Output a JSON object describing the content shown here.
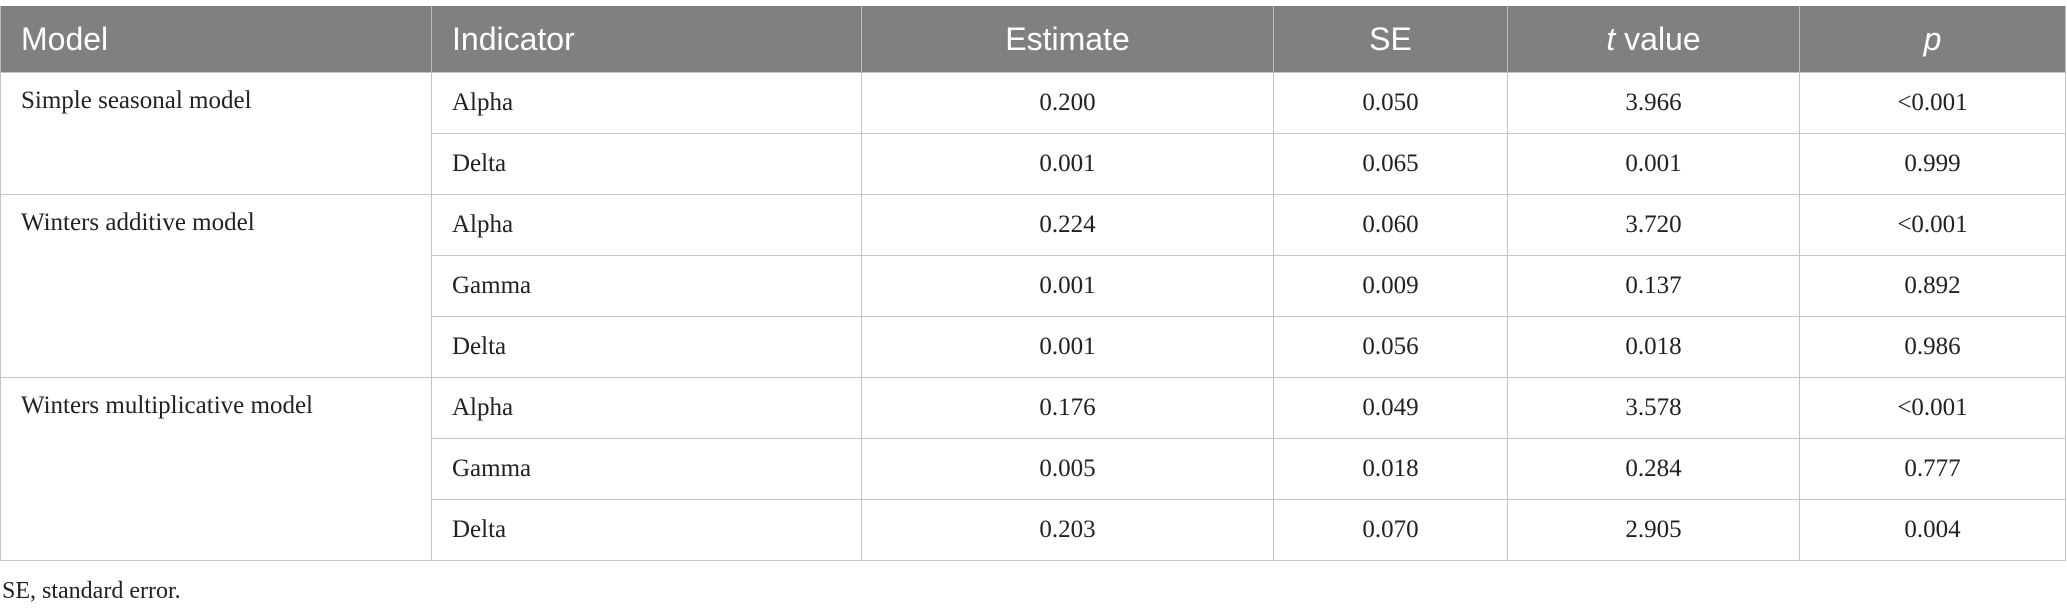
{
  "table": {
    "header": [
      "Model",
      "Indicator",
      "Estimate",
      "SE",
      {
        "var": "t",
        "text": "value"
      },
      {
        "var": "p"
      }
    ],
    "groups": [
      {
        "model": "Simple seasonal model",
        "rows": [
          [
            "Alpha",
            "0.200",
            "0.050",
            "3.966",
            "<0.001"
          ],
          [
            "Delta",
            "0.001",
            "0.065",
            "0.001",
            "0.999"
          ]
        ]
      },
      {
        "model": "Winters additive model",
        "rows": [
          [
            "Alpha",
            "0.224",
            "0.060",
            "3.720",
            "<0.001"
          ],
          [
            "Gamma",
            "0.001",
            "0.009",
            "0.137",
            "0.892"
          ],
          [
            "Delta",
            "0.001",
            "0.056",
            "0.018",
            "0.986"
          ]
        ]
      },
      {
        "model": "Winters multiplicative model",
        "rows": [
          [
            "Alpha",
            "0.176",
            "0.049",
            "3.578",
            "<0.001"
          ],
          [
            "Gamma",
            "0.005",
            "0.018",
            "0.284",
            "0.777"
          ],
          [
            "Delta",
            "0.203",
            "0.070",
            "2.905",
            "0.004"
          ]
        ]
      }
    ]
  },
  "footnote": "SE, standard error."
}
